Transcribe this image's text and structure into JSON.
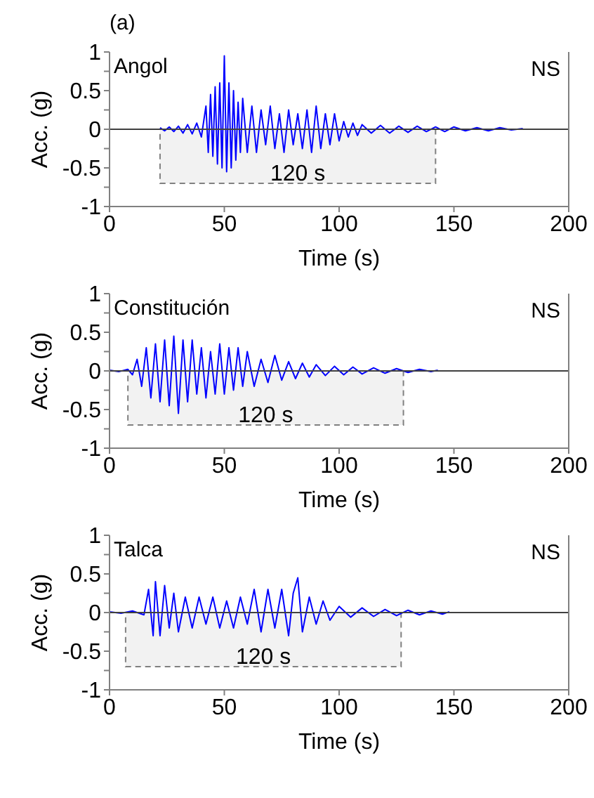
{
  "chart_data": [
    {
      "type": "line",
      "title": "(a)",
      "xlabel": "Time (s)",
      "ylabel": "Acc. (g)",
      "annotations": [
        "Angol",
        "NS"
      ],
      "xlim": [
        0,
        200
      ],
      "xticks": [
        0,
        50,
        100,
        150,
        200
      ],
      "ylim": [
        -1,
        1
      ],
      "yticks": [
        -1,
        {
          "value": -0.75,
          "label": null
        },
        -0.5,
        {
          "value": -0.25,
          "label": null
        },
        0,
        {
          "value": 0.25,
          "label": null
        },
        0.5,
        {
          "value": 0.75,
          "label": null
        },
        1
      ],
      "grid": false,
      "legend": false,
      "marker": "none",
      "line_style": "solid",
      "ref_lines": [
        {
          "axis": "y",
          "value": 0,
          "color": "#404040"
        }
      ],
      "bands": [
        {
          "axis": "x",
          "from": 22,
          "to": 142,
          "label": "120 s",
          "color": "#808080"
        }
      ],
      "series": [
        {
          "color": "#0000ff",
          "x": [
            22,
            24,
            26,
            28,
            30,
            32,
            34,
            36,
            38,
            40,
            42,
            43,
            44,
            45,
            46,
            47,
            48,
            49,
            50,
            51,
            52,
            53,
            54,
            55,
            56,
            57,
            58,
            60,
            62,
            64,
            66,
            68,
            70,
            72,
            74,
            76,
            78,
            80,
            82,
            84,
            86,
            88,
            90,
            92,
            94,
            96,
            98,
            100,
            102,
            104,
            106,
            108,
            110,
            114,
            118,
            122,
            126,
            130,
            134,
            138,
            142,
            146,
            150,
            155,
            160,
            165,
            170,
            175,
            180
          ],
          "values": [
            0.02,
            -0.02,
            0.03,
            -0.03,
            0.04,
            -0.05,
            0.06,
            -0.06,
            0.08,
            -0.1,
            0.3,
            -0.3,
            0.45,
            -0.35,
            0.55,
            -0.45,
            0.6,
            -0.5,
            0.95,
            -0.55,
            0.6,
            -0.5,
            0.5,
            -0.4,
            0.35,
            -0.3,
            0.4,
            -0.3,
            0.3,
            -0.3,
            0.25,
            -0.2,
            0.3,
            -0.25,
            0.2,
            -0.3,
            0.25,
            -0.2,
            0.2,
            -0.25,
            0.25,
            -0.3,
            0.3,
            -0.25,
            0.2,
            -0.2,
            0.2,
            -0.15,
            0.1,
            -0.1,
            0.08,
            -0.08,
            0.06,
            -0.05,
            0.05,
            -0.05,
            0.04,
            -0.04,
            0.04,
            -0.03,
            0.03,
            -0.03,
            0.03,
            -0.02,
            0.02,
            -0.02,
            0.02,
            -0.01,
            0.01
          ]
        }
      ]
    },
    {
      "type": "line",
      "xlabel": "Time (s)",
      "ylabel": "Acc. (g)",
      "annotations": [
        "Constitución",
        "NS"
      ],
      "xlim": [
        0,
        200
      ],
      "xticks": [
        0,
        50,
        100,
        150,
        200
      ],
      "ylim": [
        -1,
        1
      ],
      "yticks": [
        -1,
        {
          "value": -0.75,
          "label": null
        },
        -0.5,
        {
          "value": -0.25,
          "label": null
        },
        0,
        {
          "value": 0.25,
          "label": null
        },
        0.5,
        {
          "value": 0.75,
          "label": null
        },
        1
      ],
      "grid": false,
      "legend": false,
      "marker": "none",
      "line_style": "solid",
      "ref_lines": [
        {
          "axis": "y",
          "value": 0,
          "color": "#404040"
        }
      ],
      "bands": [
        {
          "axis": "x",
          "from": 8,
          "to": 128,
          "label": "120 s",
          "color": "#808080"
        }
      ],
      "series": [
        {
          "color": "#0000ff",
          "x": [
            0,
            4,
            8,
            10,
            12,
            14,
            16,
            18,
            20,
            22,
            24,
            26,
            28,
            30,
            32,
            34,
            36,
            38,
            40,
            42,
            44,
            46,
            48,
            50,
            52,
            54,
            56,
            58,
            60,
            63,
            66,
            69,
            72,
            75,
            78,
            81,
            84,
            87,
            90,
            94,
            98,
            102,
            106,
            110,
            115,
            120,
            125,
            130,
            135,
            140,
            143
          ],
          "values": [
            0.01,
            -0.01,
            0.02,
            -0.05,
            0.15,
            -0.2,
            0.3,
            -0.35,
            0.35,
            -0.4,
            0.4,
            -0.45,
            0.45,
            -0.55,
            0.4,
            -0.4,
            0.4,
            -0.3,
            0.3,
            -0.35,
            0.25,
            -0.3,
            0.35,
            -0.3,
            0.3,
            -0.25,
            0.3,
            -0.2,
            0.25,
            -0.2,
            0.15,
            -0.15,
            0.2,
            -0.12,
            0.12,
            -0.1,
            0.1,
            -0.08,
            0.08,
            -0.06,
            0.06,
            -0.05,
            0.05,
            -0.04,
            0.04,
            -0.03,
            0.03,
            -0.02,
            0.02,
            -0.01,
            0.01
          ]
        }
      ]
    },
    {
      "type": "line",
      "xlabel": "Time (s)",
      "ylabel": "Acc. (g)",
      "annotations": [
        "Talca",
        "NS"
      ],
      "xlim": [
        0,
        200
      ],
      "xticks": [
        0,
        50,
        100,
        150,
        200
      ],
      "ylim": [
        -1,
        1
      ],
      "yticks": [
        -1,
        {
          "value": -0.75,
          "label": null
        },
        -0.5,
        {
          "value": -0.25,
          "label": null
        },
        0,
        {
          "value": 0.25,
          "label": null
        },
        0.5,
        {
          "value": 0.75,
          "label": null
        },
        1
      ],
      "grid": false,
      "legend": false,
      "marker": "none",
      "line_style": "solid",
      "ref_lines": [
        {
          "axis": "y",
          "value": 0,
          "color": "#404040"
        }
      ],
      "bands": [
        {
          "axis": "x",
          "from": 7,
          "to": 127,
          "label": "120 s",
          "color": "#808080"
        }
      ],
      "series": [
        {
          "color": "#0000ff",
          "x": [
            0,
            5,
            10,
            15,
            17,
            19,
            20,
            22,
            24,
            26,
            28,
            30,
            33,
            36,
            39,
            42,
            45,
            48,
            51,
            54,
            57,
            60,
            63,
            66,
            69,
            72,
            75,
            78,
            80,
            82,
            84,
            87,
            90,
            93,
            96,
            100,
            105,
            110,
            115,
            120,
            125,
            130,
            135,
            140,
            145,
            148
          ],
          "values": [
            0.01,
            -0.01,
            0.02,
            -0.03,
            0.3,
            -0.3,
            0.4,
            -0.3,
            0.35,
            -0.2,
            0.25,
            -0.25,
            0.2,
            -0.2,
            0.2,
            -0.15,
            0.2,
            -0.2,
            0.15,
            -0.2,
            0.2,
            -0.15,
            0.3,
            -0.25,
            0.3,
            -0.2,
            0.3,
            -0.3,
            0.25,
            0.45,
            -0.25,
            0.2,
            -0.15,
            0.15,
            -0.1,
            0.08,
            -0.06,
            0.06,
            -0.05,
            0.04,
            -0.04,
            0.03,
            -0.03,
            0.02,
            -0.02,
            0.01
          ]
        }
      ]
    }
  ]
}
